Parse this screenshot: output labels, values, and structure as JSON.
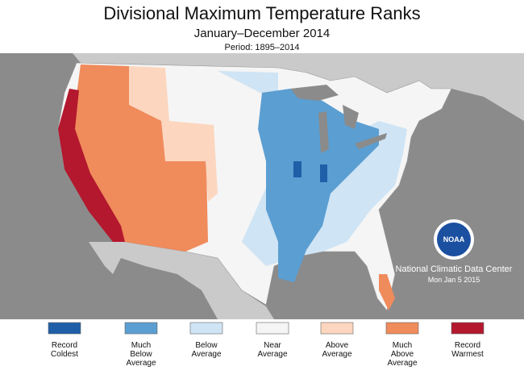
{
  "header": {
    "title": "Divisional Maximum Temperature Ranks",
    "subtitle": "January–December 2014",
    "period": "Period: 1895–2014"
  },
  "legend": [
    {
      "lines": [
        "Record",
        "Coldest"
      ],
      "color": "#1f5fa8"
    },
    {
      "lines": [
        "Much",
        "Below",
        "Average"
      ],
      "color": "#5b9ed2"
    },
    {
      "lines": [
        "Below",
        "Average"
      ],
      "color": "#cfe4f4"
    },
    {
      "lines": [
        "Near",
        "Average"
      ],
      "color": "#f5f5f5"
    },
    {
      "lines": [
        "Above",
        "Average"
      ],
      "color": "#fcd6bf"
    },
    {
      "lines": [
        "Much",
        "Above",
        "Average"
      ],
      "color": "#f08b5c"
    },
    {
      "lines": [
        "Record",
        "Warmest"
      ],
      "color": "#b3182e"
    }
  ],
  "logo": "NOAA",
  "credit": [
    "National Climatic Data Center",
    "Mon Jan  5 2015"
  ]
}
